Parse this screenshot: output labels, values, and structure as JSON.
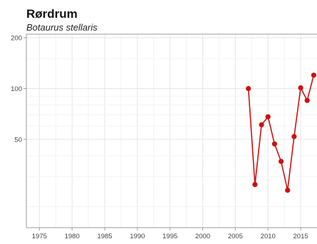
{
  "chart_data": {
    "type": "line",
    "title": "Rørdrum",
    "subtitle": "Botaurus stellaris",
    "xlabel": "",
    "ylabel": "",
    "y_scale": "log",
    "ylim": [
      15,
      210
    ],
    "xlim": [
      1973,
      2017.5
    ],
    "grid": true,
    "y_ticks": [
      50,
      100,
      200
    ],
    "x_ticks": [
      1975,
      1980,
      1985,
      1990,
      1995,
      2000,
      2005,
      2010,
      2015
    ],
    "series": [
      {
        "color": "#cc1111",
        "x": [
          2007,
          2008,
          2009,
          2010,
          2011,
          2012,
          2013,
          2014,
          2015,
          2016,
          2017
        ],
        "y": [
          100,
          27,
          61,
          68,
          47,
          37,
          25,
          52,
          101,
          85,
          120
        ]
      }
    ]
  }
}
